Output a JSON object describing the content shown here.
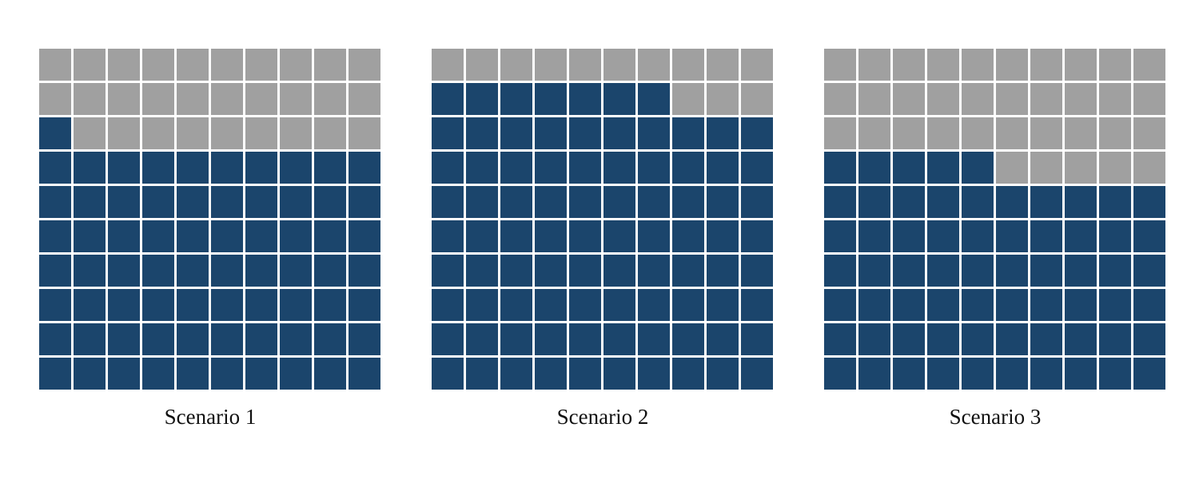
{
  "chart_data": [
    {
      "type": "waffle",
      "rows": 10,
      "columns": 10,
      "total": 100,
      "value": 71,
      "label": "Scenario 1",
      "fill_order": "bottom-to-top, left-to-right",
      "filled_color": "#1b456c",
      "empty_color": "#a0a0a0"
    },
    {
      "type": "waffle",
      "rows": 10,
      "columns": 10,
      "total": 100,
      "value": 87,
      "label": "Scenario 2",
      "fill_order": "bottom-to-top, left-to-right",
      "filled_color": "#1b456c",
      "empty_color": "#a0a0a0"
    },
    {
      "type": "waffle",
      "rows": 10,
      "columns": 10,
      "total": 100,
      "value": 65,
      "label": "Scenario 3",
      "fill_order": "bottom-to-top, left-to-right",
      "filled_color": "#1b456c",
      "empty_color": "#a0a0a0"
    }
  ]
}
